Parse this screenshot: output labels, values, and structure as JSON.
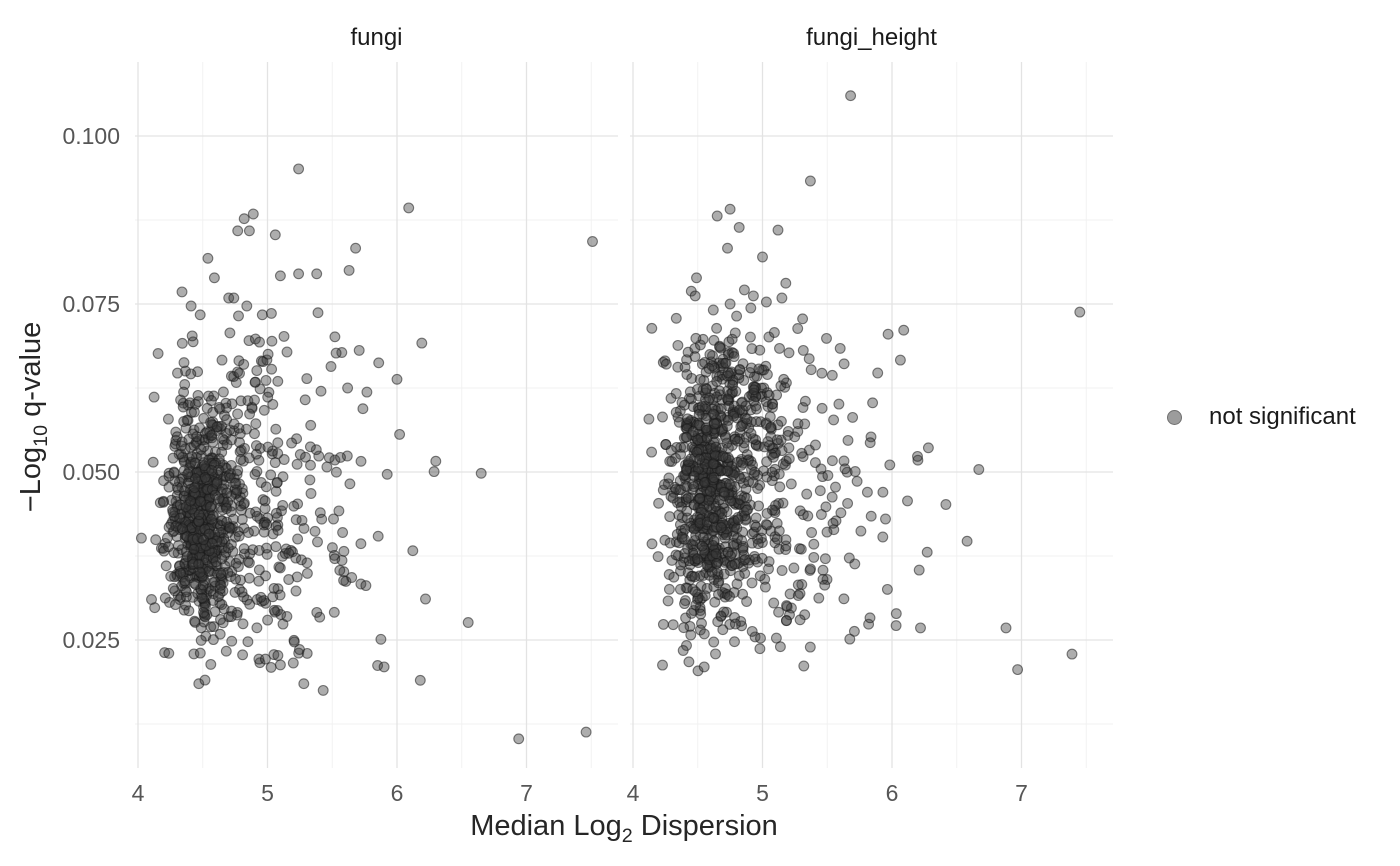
{
  "figure": {
    "background": "#ffffff"
  },
  "colors": {
    "grid_major": "#e3e3e3",
    "grid_minor": "#f1f1f1",
    "tick_text": "#565656",
    "strip_text": "#1a1a1a",
    "axis_title_text": "#262626",
    "legend_marker_fill": "#9c9c9c",
    "legend_marker_stroke": "#6f6f6f"
  },
  "chart_data": {
    "type": "scatter",
    "title": "",
    "xlabel": {
      "pre": "Median Log",
      "sub": "2",
      "post": " Dispersion"
    },
    "ylabel": {
      "pre": "−Log",
      "sub": "10",
      "post": " q-value"
    },
    "x_domain": [
      3.977,
      7.707
    ],
    "y_domain": [
      0.006,
      0.111
    ],
    "y_ref": 0.1,
    "grid": "on",
    "legend_position": "right",
    "x_ticks": [
      {
        "v": 4,
        "label": "4"
      },
      {
        "v": 5,
        "label": "5"
      },
      {
        "v": 6,
        "label": "6"
      },
      {
        "v": 7,
        "label": "7"
      }
    ],
    "x_minor_ticks": [
      4.5,
      5.5,
      6.5,
      7.5
    ],
    "y_ticks": [
      {
        "v": 0.025,
        "label": "0.025"
      },
      {
        "v": 0.05,
        "label": "0.050"
      },
      {
        "v": 0.075,
        "label": "0.075"
      },
      {
        "v": 0.1,
        "label": "0.100"
      }
    ],
    "y_minor_ticks": [
      0.0125,
      0.0375,
      0.0625,
      0.0875
    ],
    "point_style": {
      "radius": 4.9,
      "fill": "rgba(60,60,60,0.42)",
      "stroke": "rgba(25,25,25,0.55)",
      "stroke_width": 1.1
    },
    "legend": {
      "title": "",
      "items": [
        {
          "label": "not significant",
          "fill": "#9c9c9c",
          "stroke": "#6f6f6f"
        }
      ]
    },
    "facets": [
      {
        "label": "fungi",
        "seed": 97,
        "outliers": [
          [
            5.24,
            0.0951
          ],
          [
            6.09,
            0.0893
          ],
          [
            4.89,
            0.0884
          ],
          [
            4.82,
            0.0877
          ],
          [
            4.77,
            0.0859
          ],
          [
            4.86,
            0.0859
          ],
          [
            5.06,
            0.0853
          ],
          [
            7.51,
            0.0843
          ],
          [
            5.68,
            0.0833
          ],
          [
            4.54,
            0.0818
          ],
          [
            5.63,
            0.08
          ],
          [
            5.24,
            0.0795
          ],
          [
            5.38,
            0.0795
          ],
          [
            5.1,
            0.0792
          ],
          [
            4.59,
            0.0789
          ],
          [
            4.34,
            0.0768
          ],
          [
            4.7,
            0.0759
          ],
          [
            4.74,
            0.0759
          ],
          [
            4.41,
            0.0747
          ],
          [
            4.84,
            0.0747
          ],
          [
            5.39,
            0.0737
          ],
          [
            5.03,
            0.0736
          ],
          [
            4.48,
            0.0734
          ],
          [
            4.96,
            0.0734
          ],
          [
            5.53,
            0.0677
          ],
          [
            5.49,
            0.0657
          ],
          [
            6.0,
            0.0638
          ],
          [
            6.02,
            0.0556
          ],
          [
            6.3,
            0.0516
          ],
          [
            6.65,
            0.0498
          ],
          [
            5.51,
            0.043
          ],
          [
            5.58,
            0.041
          ],
          [
            5.59,
            0.0382
          ],
          [
            5.52,
            0.0371
          ],
          [
            5.65,
            0.0343
          ],
          [
            5.76,
            0.0331
          ],
          [
            6.22,
            0.0311
          ],
          [
            6.55,
            0.0276
          ],
          [
            5.85,
            0.0212
          ],
          [
            5.9,
            0.021
          ],
          [
            5.1,
            0.0213
          ],
          [
            5.28,
            0.0185
          ],
          [
            6.18,
            0.019
          ],
          [
            5.43,
            0.0175
          ],
          [
            6.94,
            0.0103
          ],
          [
            7.46,
            0.0113
          ]
        ],
        "clusters": [
          {
            "n": 460,
            "cx": 4.38,
            "sx": 0.105,
            "skew": 0.12,
            "cy": 0.042,
            "sy": 0.0075,
            "ymin": 0.021,
            "ymax": 0.062
          },
          {
            "n": 260,
            "cx": 4.46,
            "sx": 0.18,
            "skew": 0.32,
            "cy": 0.047,
            "sy": 0.012,
            "ymin": 0.019,
            "ymax": 0.071
          },
          {
            "n": 185,
            "cx": 4.55,
            "sx": 0.3,
            "skew": 0.6,
            "cy": 0.046,
            "sy": 0.0155,
            "ymin": 0.0175,
            "ymax": 0.0735
          }
        ]
      },
      {
        "label": "fungi_height",
        "seed": 131,
        "outliers": [
          [
            5.68,
            0.106
          ],
          [
            5.37,
            0.0933
          ],
          [
            4.75,
            0.0891
          ],
          [
            4.65,
            0.0881
          ],
          [
            4.82,
            0.0864
          ],
          [
            5.12,
            0.086
          ],
          [
            4.73,
            0.0833
          ],
          [
            5.0,
            0.082
          ],
          [
            4.49,
            0.0789
          ],
          [
            5.18,
            0.0781
          ],
          [
            4.86,
            0.0771
          ],
          [
            4.45,
            0.0769
          ],
          [
            4.48,
            0.0762
          ],
          [
            4.93,
            0.0762
          ],
          [
            5.15,
            0.0759
          ],
          [
            5.03,
            0.0753
          ],
          [
            4.75,
            0.075
          ],
          [
            4.91,
            0.0744
          ],
          [
            4.62,
            0.0741
          ],
          [
            7.45,
            0.0738
          ],
          [
            4.8,
            0.0732
          ],
          [
            5.31,
            0.0728
          ],
          [
            6.09,
            0.0711
          ],
          [
            5.97,
            0.0705
          ],
          [
            5.6,
            0.0684
          ],
          [
            5.63,
            0.0661
          ],
          [
            5.85,
            0.0603
          ],
          [
            5.59,
            0.0601
          ],
          [
            5.81,
            0.047
          ],
          [
            5.93,
            0.047
          ],
          [
            6.12,
            0.0457
          ],
          [
            5.95,
            0.043
          ],
          [
            5.76,
            0.0412
          ],
          [
            6.58,
            0.0397
          ],
          [
            5.67,
            0.0372
          ],
          [
            6.21,
            0.0354
          ],
          [
            5.83,
            0.0283
          ],
          [
            5.29,
            0.028
          ],
          [
            6.22,
            0.0268
          ],
          [
            6.88,
            0.0268
          ],
          [
            5.71,
            0.0263
          ],
          [
            7.39,
            0.0229
          ],
          [
            4.98,
            0.0237
          ],
          [
            4.55,
            0.021
          ],
          [
            6.97,
            0.0206
          ]
        ],
        "clusters": [
          {
            "n": 470,
            "cx": 4.45,
            "sx": 0.125,
            "skew": 0.14,
            "cy": 0.0465,
            "sy": 0.009,
            "ymin": 0.023,
            "ymax": 0.068
          },
          {
            "n": 130,
            "cx": 4.63,
            "sx": 0.15,
            "skew": 0.12,
            "cy": 0.061,
            "sy": 0.0062,
            "ymin": 0.05,
            "ymax": 0.0715
          },
          {
            "n": 260,
            "cx": 4.53,
            "sx": 0.2,
            "skew": 0.33,
            "cy": 0.048,
            "sy": 0.0128,
            "ymin": 0.021,
            "ymax": 0.072
          },
          {
            "n": 165,
            "cx": 4.62,
            "sx": 0.3,
            "skew": 0.66,
            "cy": 0.0465,
            "sy": 0.016,
            "ymin": 0.02,
            "ymax": 0.073
          }
        ]
      }
    ]
  }
}
